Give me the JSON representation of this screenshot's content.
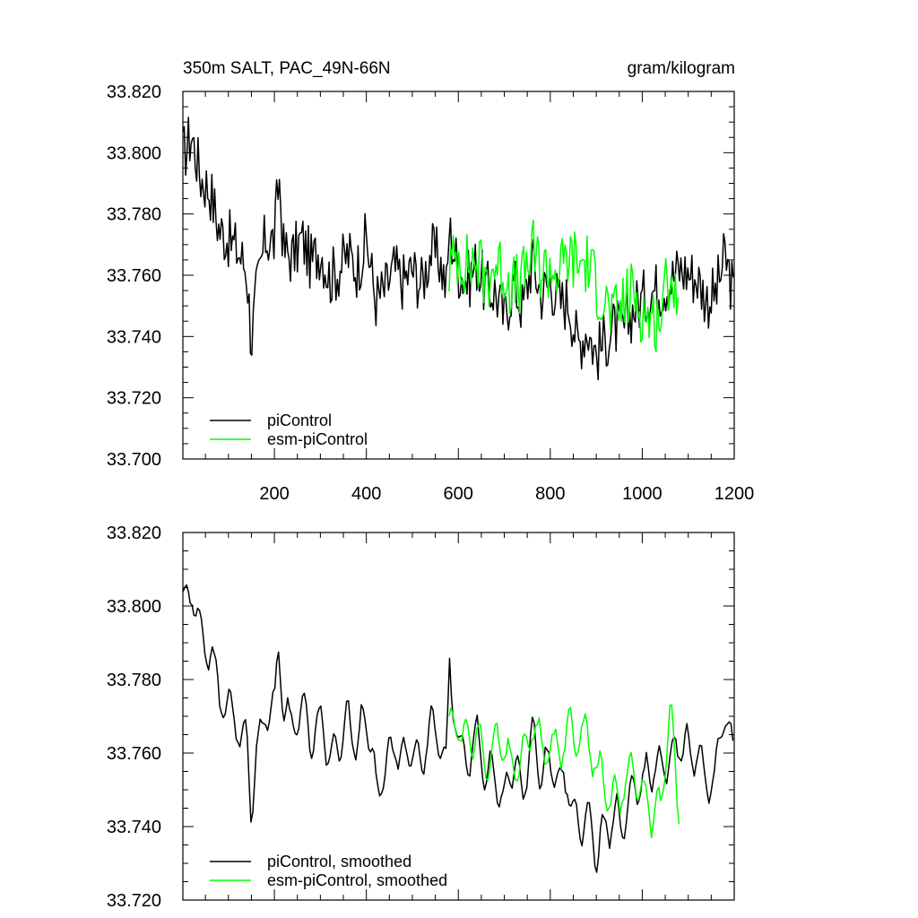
{
  "colors": {
    "piControl": "#000000",
    "esm": "#00ff00",
    "axis": "#000000"
  },
  "chart_data": [
    {
      "type": "line",
      "title": "350m SALT, PAC_49N-66N",
      "units": "gram/kilogram",
      "xlabel": "",
      "ylabel": "",
      "xlim": [
        1,
        1200
      ],
      "ylim": [
        33.7,
        33.82
      ],
      "xticks": [
        200,
        400,
        600,
        800,
        1000,
        1200
      ],
      "xtick_labels": [
        "200",
        "400",
        "600",
        "800",
        "1000",
        "1200"
      ],
      "yticks": [
        33.7,
        33.72,
        33.74,
        33.76,
        33.78,
        33.8,
        33.82
      ],
      "ytick_labels": [
        "33.700",
        "33.720",
        "33.740",
        "33.760",
        "33.780",
        "33.800",
        "33.820"
      ],
      "legend_position": "bottom-left",
      "series": [
        {
          "name": "piControl",
          "color": "#000000",
          "x": [
            1,
            20,
            40,
            60,
            80,
            100,
            120,
            140,
            150,
            160,
            180,
            200,
            210,
            220,
            240,
            260,
            280,
            300,
            320,
            340,
            360,
            380,
            400,
            420,
            440,
            460,
            480,
            500,
            520,
            540,
            560,
            575,
            580,
            600,
            620,
            640,
            660,
            680,
            700,
            720,
            740,
            760,
            780,
            800,
            820,
            840,
            860,
            880,
            900,
            920,
            940,
            960,
            980,
            1000,
            1020,
            1040,
            1060,
            1080,
            1100,
            1120,
            1140,
            1160,
            1180,
            1200
          ],
          "y": [
            33.799,
            33.806,
            33.792,
            33.788,
            33.775,
            33.772,
            33.768,
            33.762,
            33.738,
            33.753,
            33.772,
            33.771,
            33.793,
            33.768,
            33.766,
            33.772,
            33.764,
            33.769,
            33.759,
            33.762,
            33.767,
            33.762,
            33.772,
            33.752,
            33.755,
            33.762,
            33.758,
            33.762,
            33.757,
            33.768,
            33.765,
            33.755,
            33.775,
            33.762,
            33.758,
            33.764,
            33.755,
            33.755,
            33.746,
            33.758,
            33.749,
            33.765,
            33.754,
            33.758,
            33.751,
            33.752,
            33.737,
            33.743,
            33.734,
            33.739,
            33.743,
            33.742,
            33.749,
            33.752,
            33.755,
            33.756,
            33.758,
            33.762,
            33.761,
            33.759,
            33.752,
            33.754,
            33.766,
            33.753
          ]
        },
        {
          "name": "esm-piControl",
          "color": "#00ff00",
          "x": [
            580,
            600,
            620,
            640,
            660,
            680,
            700,
            720,
            740,
            760,
            780,
            800,
            820,
            840,
            860,
            880,
            900,
            920,
            940,
            960,
            980,
            1000,
            1020,
            1040,
            1060,
            1080
          ],
          "y": [
            33.762,
            33.767,
            33.763,
            33.765,
            33.758,
            33.764,
            33.761,
            33.756,
            33.758,
            33.768,
            33.762,
            33.762,
            33.761,
            33.766,
            33.764,
            33.764,
            33.757,
            33.751,
            33.746,
            33.751,
            33.755,
            33.748,
            33.745,
            33.747,
            33.762,
            33.751
          ]
        }
      ]
    },
    {
      "type": "line",
      "title": "",
      "xlabel": "",
      "ylabel": "",
      "xlim": [
        1,
        1200
      ],
      "ylim": [
        33.72,
        33.82
      ],
      "yticks": [
        33.72,
        33.74,
        33.76,
        33.78,
        33.8,
        33.82
      ],
      "ytick_labels": [
        "33.720",
        "33.740",
        "33.760",
        "33.780",
        "33.800",
        "33.820"
      ],
      "legend_position": "bottom-left",
      "series": [
        {
          "name": "piControl, smoothed",
          "color": "#000000",
          "x": [
            1,
            20,
            40,
            60,
            80,
            100,
            120,
            140,
            150,
            160,
            180,
            200,
            210,
            220,
            240,
            260,
            280,
            300,
            320,
            340,
            360,
            380,
            400,
            420,
            440,
            460,
            480,
            500,
            520,
            540,
            560,
            575,
            580,
            600,
            620,
            640,
            660,
            680,
            700,
            720,
            740,
            760,
            780,
            800,
            820,
            840,
            860,
            880,
            900,
            920,
            940,
            960,
            980,
            1000,
            1020,
            1040,
            1060,
            1080,
            1100,
            1120,
            1140,
            1160,
            1180,
            1200
          ],
          "y": [
            33.8,
            33.806,
            33.792,
            33.788,
            33.775,
            33.772,
            33.768,
            33.762,
            33.744,
            33.758,
            33.772,
            33.771,
            33.79,
            33.772,
            33.766,
            33.773,
            33.764,
            33.769,
            33.759,
            33.762,
            33.768,
            33.762,
            33.772,
            33.75,
            33.755,
            33.763,
            33.758,
            33.762,
            33.757,
            33.768,
            33.765,
            33.755,
            33.785,
            33.762,
            33.758,
            33.764,
            33.755,
            33.755,
            33.747,
            33.758,
            33.749,
            33.765,
            33.754,
            33.758,
            33.751,
            33.752,
            33.738,
            33.743,
            33.734,
            33.739,
            33.743,
            33.742,
            33.749,
            33.752,
            33.755,
            33.756,
            33.758,
            33.762,
            33.761,
            33.759,
            33.752,
            33.754,
            33.772,
            33.757
          ]
        },
        {
          "name": "esm-piControl, smoothed",
          "color": "#00ff00",
          "x": [
            580,
            600,
            620,
            640,
            660,
            680,
            700,
            720,
            740,
            760,
            780,
            800,
            820,
            840,
            860,
            880,
            900,
            920,
            940,
            960,
            980,
            1000,
            1020,
            1040,
            1060,
            1080
          ],
          "y": [
            33.766,
            33.769,
            33.763,
            33.766,
            33.758,
            33.764,
            33.761,
            33.755,
            33.758,
            33.768,
            33.762,
            33.762,
            33.761,
            33.766,
            33.764,
            33.765,
            33.757,
            33.75,
            33.747,
            33.751,
            33.756,
            33.748,
            33.744,
            33.745,
            33.772,
            33.745
          ]
        }
      ]
    }
  ]
}
